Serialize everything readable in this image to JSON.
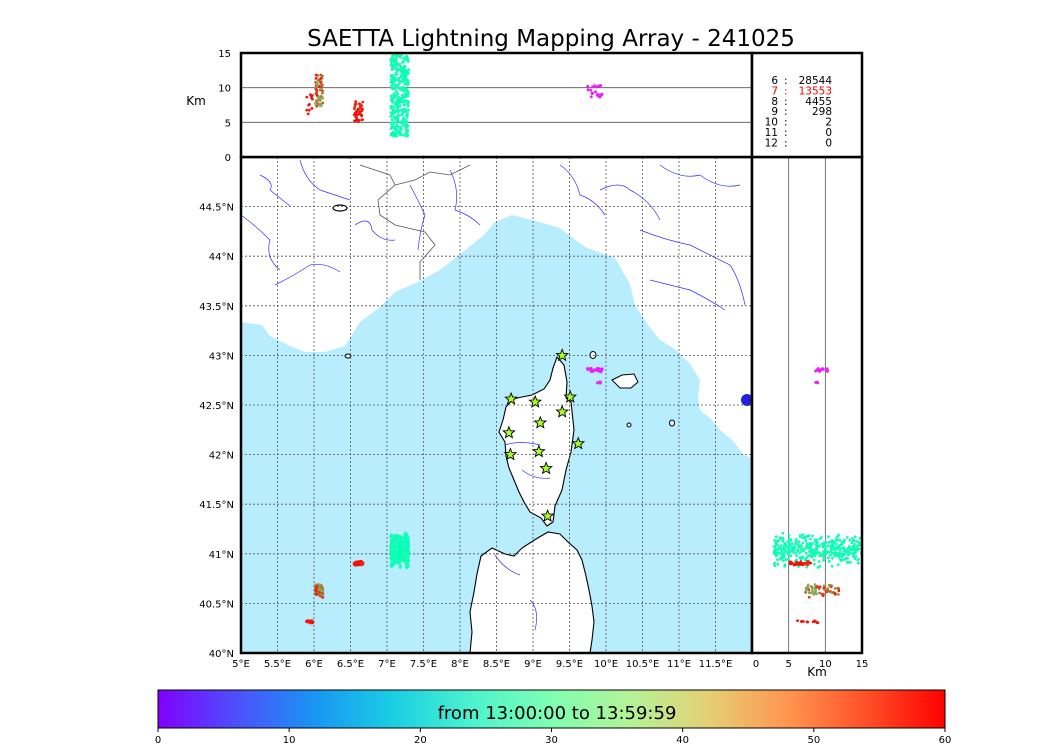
{
  "chart_data": {
    "type": "scatter",
    "title": "SAETTA Lightning Mapping Array - 241025",
    "map": {
      "lon_range": [
        5,
        12
      ],
      "lat_range": [
        40,
        45
      ],
      "lon_tick_values": [
        5,
        5.5,
        6,
        6.5,
        7,
        7.5,
        8,
        8.5,
        9,
        9.5,
        10,
        10.5,
        11,
        11.5
      ],
      "lon_ticks": [
        "5°E",
        "5.5°E",
        "6°E",
        "6.5°E",
        "7°E",
        "7.5°E",
        "8°E",
        "8.5°E",
        "9°E",
        "9.5°E",
        "10°E",
        "10.5°E",
        "11°E",
        "11.5°E"
      ],
      "lat_tick_values": [
        40,
        40.5,
        41,
        41.5,
        42,
        42.5,
        43,
        43.5,
        44,
        44.5
      ],
      "lat_ticks": [
        "40°N",
        "40.5°N",
        "41°N",
        "41.5°N",
        "42°N",
        "42.5°N",
        "43°N",
        "43.5°N",
        "44°N",
        "44.5°N"
      ],
      "grid": true
    },
    "altitude": {
      "unit": "Km",
      "range": [
        0,
        15
      ],
      "tick_values": [
        0,
        5,
        10,
        15
      ],
      "ticks": [
        "0",
        "5",
        "10",
        "15"
      ]
    },
    "stations": [
      {
        "lon": 9.4,
        "lat": 43.0
      },
      {
        "lon": 8.7,
        "lat": 42.56
      },
      {
        "lon": 9.03,
        "lat": 42.53
      },
      {
        "lon": 9.51,
        "lat": 42.58
      },
      {
        "lon": 9.4,
        "lat": 42.43
      },
      {
        "lon": 9.1,
        "lat": 42.32
      },
      {
        "lon": 8.67,
        "lat": 42.22
      },
      {
        "lon": 9.62,
        "lat": 42.11
      },
      {
        "lon": 9.08,
        "lat": 42.03
      },
      {
        "lon": 8.69,
        "lat": 42.0
      },
      {
        "lon": 9.18,
        "lat": 41.86
      },
      {
        "lon": 9.2,
        "lat": 41.38
      }
    ],
    "clusters": [
      {
        "lon": [
          7.05,
          7.3
        ],
        "lat": [
          40.85,
          41.22
        ],
        "alt": [
          3,
          15
        ],
        "time_min": [
          26,
          34
        ],
        "n": 380
      },
      {
        "lon": [
          6.55,
          6.67
        ],
        "lat": [
          40.88,
          40.93
        ],
        "alt": [
          5,
          8
        ],
        "time_min": [
          56,
          60
        ],
        "n": 40
      },
      {
        "lon": [
          6.02,
          6.12
        ],
        "lat": [
          40.55,
          40.7
        ],
        "alt": [
          7,
          12
        ],
        "time_min": [
          43,
          58
        ],
        "n": 60
      },
      {
        "lon": [
          5.9,
          5.98
        ],
        "lat": [
          40.29,
          40.33
        ],
        "alt": [
          6,
          9
        ],
        "time_min": [
          57,
          60
        ],
        "n": 12
      },
      {
        "lon": [
          9.73,
          9.95
        ],
        "lat": [
          42.83,
          42.88
        ],
        "alt": [
          8.5,
          10.5
        ],
        "time_min": [
          0,
          4
        ],
        "n": 20
      },
      {
        "lon": [
          9.88,
          9.93
        ],
        "lat": [
          42.7,
          42.74
        ],
        "alt": [
          8.5,
          9
        ],
        "time_min": [
          0,
          3
        ],
        "n": 4
      }
    ],
    "stats": [
      {
        "level": "6",
        "count": "28544"
      },
      {
        "level": "7",
        "count": "13553",
        "color": "#ff0000"
      },
      {
        "level": "8",
        "count": "4455"
      },
      {
        "level": "9",
        "count": "298"
      },
      {
        "level": "10",
        "count": "2"
      },
      {
        "level": "11",
        "count": "0"
      },
      {
        "level": "12",
        "count": "0"
      }
    ],
    "colorbar": {
      "label": "from 13:00:00 to 13:59:59",
      "range": [
        0,
        60
      ],
      "tick_values": [
        0,
        10,
        20,
        30,
        40,
        50,
        60
      ],
      "ticks": [
        "0",
        "10",
        "20",
        "30",
        "40",
        "50",
        "60"
      ],
      "colormap": "rainbow"
    },
    "colors": {
      "sea": "#b7edfc",
      "coast": "#000000",
      "rivers": "#3333ff",
      "borders": "#555555",
      "station_fill": "#aaff22"
    }
  }
}
